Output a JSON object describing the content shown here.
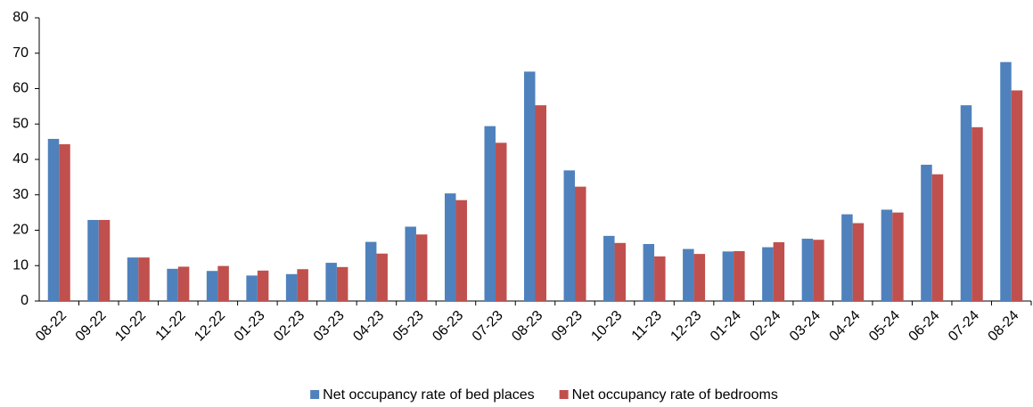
{
  "chart_data": {
    "type": "bar",
    "categories": [
      "08-22",
      "09-22",
      "10-22",
      "11-22",
      "12-22",
      "01-23",
      "02-23",
      "03-23",
      "04-23",
      "05-23",
      "06-23",
      "07-23",
      "08-23",
      "09-23",
      "10-23",
      "11-23",
      "12-23",
      "01-24",
      "02-24",
      "03-24",
      "04-24",
      "05-24",
      "06-24",
      "07-24",
      "08-24"
    ],
    "series": [
      {
        "name": "Net occupancy rate of bed places",
        "color": "#4f81bd",
        "values": [
          45.8,
          22.9,
          12.3,
          9.1,
          8.5,
          7.2,
          7.6,
          10.8,
          16.7,
          21.0,
          30.4,
          49.4,
          64.8,
          36.9,
          18.4,
          16.1,
          14.7,
          14.0,
          15.2,
          17.6,
          24.5,
          25.8,
          38.5,
          55.3,
          67.5
        ]
      },
      {
        "name": "Net occupancy rate of bedrooms",
        "color": "#c0504d",
        "values": [
          44.3,
          22.9,
          12.3,
          9.7,
          9.9,
          8.6,
          9.0,
          9.6,
          13.4,
          18.8,
          28.5,
          44.7,
          55.3,
          32.3,
          16.4,
          12.6,
          13.3,
          14.1,
          16.6,
          17.3,
          22.0,
          25.0,
          35.8,
          49.1,
          59.5
        ]
      }
    ],
    "ylim": [
      0,
      80
    ],
    "yticks": [
      0,
      10,
      20,
      30,
      40,
      50,
      60,
      70,
      80
    ],
    "grid": false,
    "legend": "bottom"
  }
}
